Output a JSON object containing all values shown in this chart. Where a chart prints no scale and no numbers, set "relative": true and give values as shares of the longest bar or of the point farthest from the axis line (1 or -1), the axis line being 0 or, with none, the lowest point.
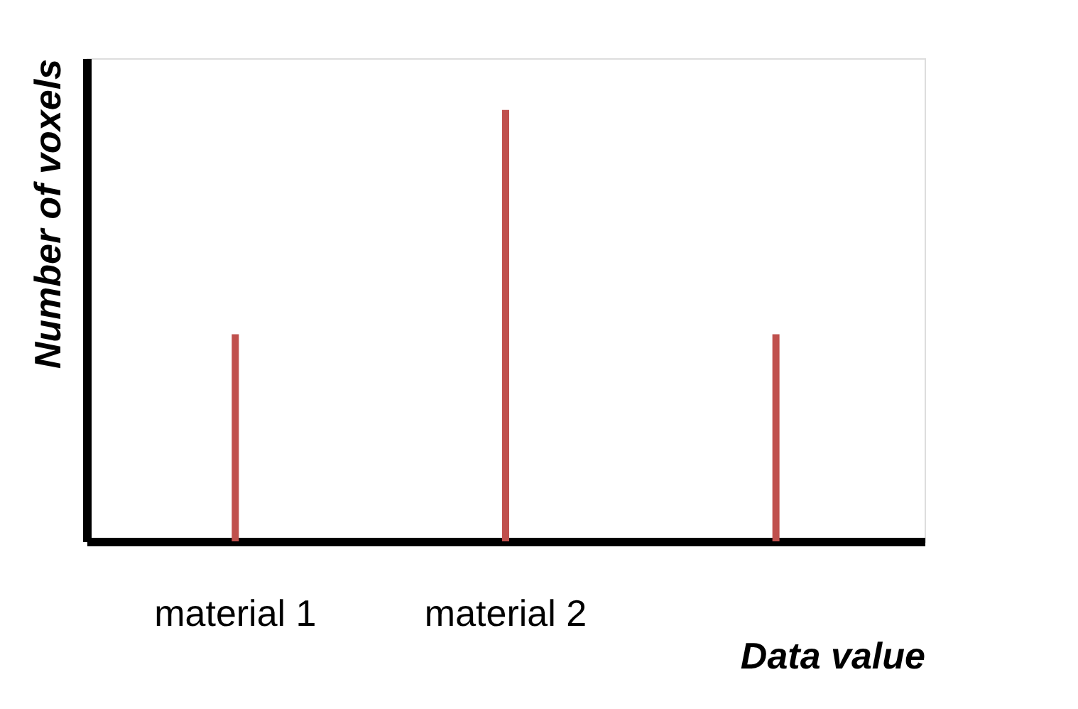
{
  "chart_data": {
    "type": "bar",
    "relative": true,
    "categories": [
      "material 1",
      "material 2",
      null
    ],
    "values": [
      0.48,
      1,
      0.48
    ],
    "color": "#c0504d",
    "xlabel": "Data value",
    "ylabel": "Number of voxels",
    "grid": false
  }
}
